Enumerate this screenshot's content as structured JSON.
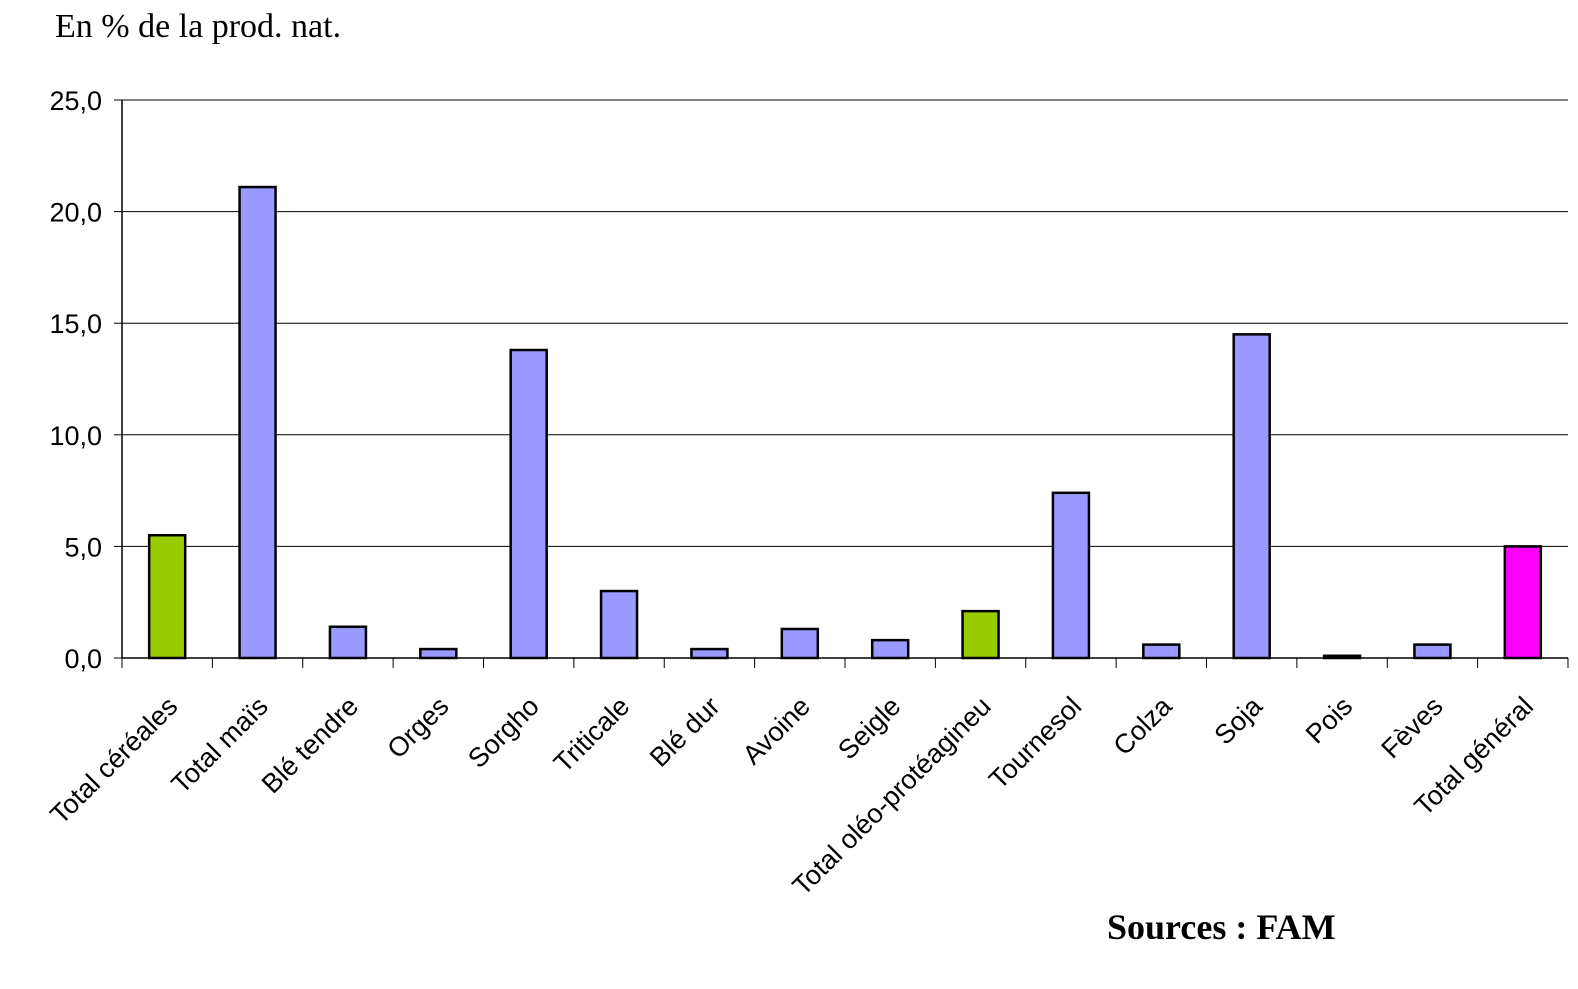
{
  "unit_label": "En % de la prod. nat.",
  "source_label": "Sources : FAM",
  "colors": {
    "aggregate": "#99cc00",
    "detail": "#9999ff",
    "total": "#ff00ff",
    "grid": "#000000",
    "bar_stroke": "#000000"
  },
  "chart_data": {
    "type": "bar",
    "title": "",
    "xlabel": "",
    "ylabel": "En % de la prod. nat.",
    "ylim": [
      0,
      25
    ],
    "yticks": [
      "0,0",
      "5,0",
      "10,0",
      "15,0",
      "20,0",
      "25,0"
    ],
    "grid": true,
    "categories": [
      "Total céréales",
      "Total maïs",
      "Blé tendre",
      "Orges",
      "Sorgho",
      "Triticale",
      "Blé dur",
      "Avoine",
      "Seigle",
      "Total oléo-protéagineu",
      "Tournesol",
      "Colza",
      "Soja",
      "Pois",
      "Fèves",
      "Total général"
    ],
    "values": [
      5.5,
      21.1,
      1.4,
      0.4,
      13.8,
      3.0,
      0.4,
      1.3,
      0.8,
      2.1,
      7.4,
      0.6,
      14.5,
      0.1,
      0.6,
      5.0
    ],
    "bar_colors": [
      "aggregate",
      "detail",
      "detail",
      "detail",
      "detail",
      "detail",
      "detail",
      "detail",
      "detail",
      "aggregate",
      "detail",
      "detail",
      "detail",
      "detail",
      "detail",
      "total"
    ]
  }
}
